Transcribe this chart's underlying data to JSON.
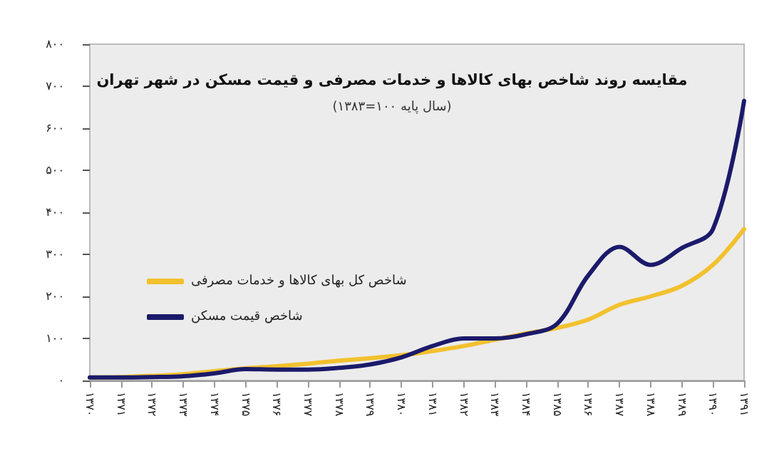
{
  "chart_data": {
    "type": "line",
    "title": "مقایسه روند شاخص بهای کالاها و خدمات مصرفی و قیمت مسکن در شهر تهران",
    "subtitle": "(سال پایه ۱۰۰=۱۳۸۳)",
    "categories": [
      "۱۳۷۰",
      "۱۳۷۱",
      "۱۳۷۲",
      "۱۳۷۳",
      "۱۳۷۴",
      "۱۳۷۵",
      "۱۳۷۶",
      "۱۳۷۷",
      "۱۳۷۸",
      "۱۳۷۹",
      "۱۳۸۰",
      "۱۳۸۱",
      "۱۳۸۲",
      "۱۳۸۳",
      "۱۳۸۴",
      "۱۳۸۵",
      "۱۳۸۶",
      "۱۳۸۷",
      "۱۳۸۸",
      "۱۳۸۹",
      "۱۳۹۰",
      "۱۳۹۱"
    ],
    "series": [
      {
        "name": "شاخص کل بهای کالاها و خدمات مصرفی",
        "color": "#f2c12e",
        "values": [
          7,
          8,
          11,
          15,
          22,
          29,
          34,
          40,
          47,
          53,
          60,
          70,
          82,
          97,
          112,
          125,
          145,
          180,
          200,
          225,
          275,
          360
        ]
      },
      {
        "name": "شاخص قیمت مسکن",
        "color": "#1b1a6b",
        "values": [
          7,
          7,
          8,
          10,
          17,
          27,
          26,
          26,
          30,
          38,
          55,
          82,
          100,
          100,
          110,
          135,
          250,
          318,
          275,
          315,
          360,
          665
        ]
      }
    ],
    "ylim": [
      0,
      800
    ],
    "yticks": [
      {
        "value": 0,
        "label": "۰"
      },
      {
        "value": 100,
        "label": "۱۰۰"
      },
      {
        "value": 200,
        "label": "۲۰۰"
      },
      {
        "value": 300,
        "label": "۳۰۰"
      },
      {
        "value": 400,
        "label": "۴۰۰"
      },
      {
        "value": 500,
        "label": "۵۰۰"
      },
      {
        "value": 600,
        "label": "۶۰۰"
      },
      {
        "value": 700,
        "label": "۷۰۰"
      },
      {
        "value": 800,
        "label": "۸۰۰"
      }
    ],
    "grid": false,
    "legend": "left",
    "marker": "none",
    "line_style": "solid"
  }
}
